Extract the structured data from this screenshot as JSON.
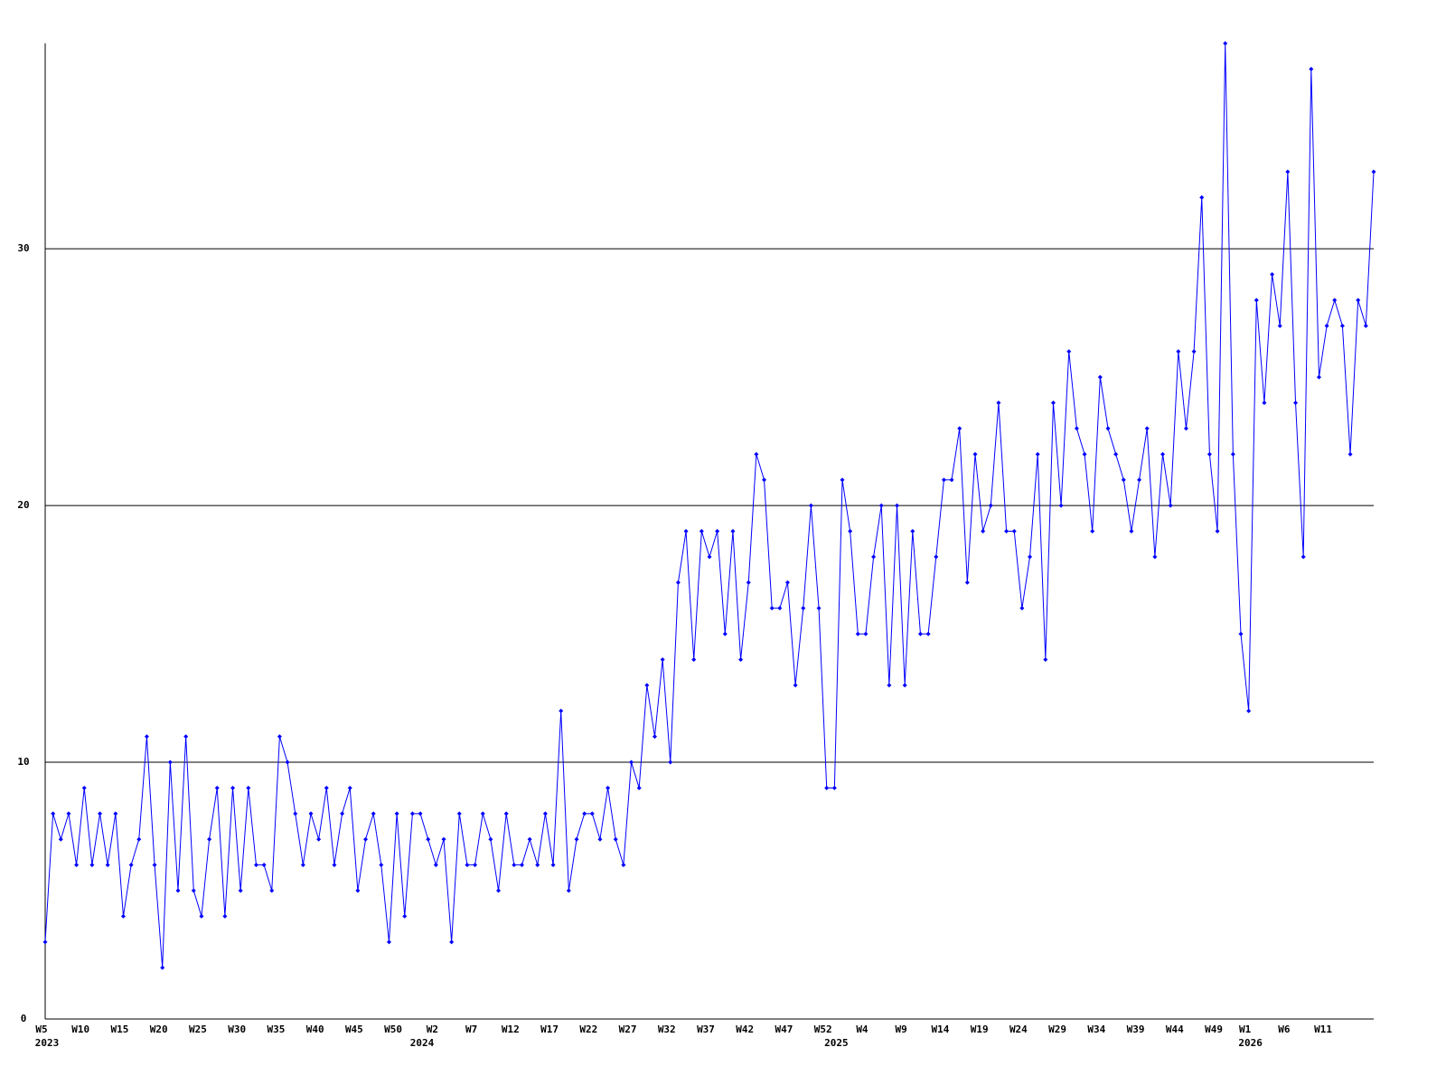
{
  "chart_data": {
    "type": "line",
    "categories": [
      "W5",
      null,
      null,
      null,
      null,
      "W10",
      null,
      null,
      null,
      null,
      "W15",
      null,
      null,
      null,
      null,
      "W20",
      null,
      null,
      null,
      null,
      "W25",
      null,
      null,
      null,
      null,
      "W30",
      null,
      null,
      null,
      null,
      "W35",
      null,
      null,
      null,
      null,
      "W40",
      null,
      null,
      null,
      null,
      "W45",
      null,
      null,
      null,
      null,
      "W50",
      null,
      null,
      null,
      null,
      "W2",
      null,
      null,
      null,
      null,
      "W7",
      null,
      null,
      null,
      null,
      "W12",
      null,
      null,
      null,
      null,
      "W17",
      null,
      null,
      null,
      null,
      "W22",
      null,
      null,
      null,
      null,
      "W27",
      null,
      null,
      null,
      null,
      "W32",
      null,
      null,
      null,
      null,
      "W37",
      null,
      null,
      null,
      null,
      "W42",
      null,
      null,
      null,
      null,
      "W47",
      null,
      null,
      null,
      null,
      "W52",
      null,
      null,
      null,
      null,
      "W4",
      null,
      null,
      null,
      null,
      "W9",
      null,
      null,
      null,
      null,
      "W14",
      null,
      null,
      null,
      null,
      "W19",
      null,
      null,
      null,
      null,
      "W24",
      null,
      null,
      null,
      null,
      "W29",
      null,
      null,
      null,
      null,
      "W34",
      null,
      null,
      null,
      null,
      "W39",
      null,
      null,
      null,
      null,
      "W44",
      null,
      null,
      null,
      null,
      "W49",
      null,
      null,
      null,
      "W1",
      null,
      null,
      null,
      null,
      "W6",
      null,
      null,
      null,
      null,
      "W11",
      null,
      null,
      null,
      null,
      null,
      null
    ],
    "years": [
      "2023",
      null,
      null,
      null,
      null,
      null,
      null,
      null,
      null,
      null,
      null,
      null,
      null,
      null,
      null,
      null,
      null,
      null,
      null,
      null,
      null,
      null,
      null,
      null,
      null,
      null,
      null,
      null,
      null,
      null,
      null,
      null,
      null,
      null,
      null,
      null,
      null,
      null,
      null,
      null,
      null,
      null,
      null,
      null,
      null,
      null,
      null,
      null,
      "2024",
      null,
      null,
      null,
      null,
      null,
      null,
      null,
      null,
      null,
      null,
      null,
      null,
      null,
      null,
      null,
      null,
      null,
      null,
      null,
      null,
      null,
      null,
      null,
      null,
      null,
      null,
      null,
      null,
      null,
      null,
      null,
      null,
      null,
      null,
      null,
      null,
      null,
      null,
      null,
      null,
      null,
      null,
      null,
      null,
      null,
      null,
      null,
      null,
      null,
      null,
      null,
      null,
      "2025",
      null,
      null,
      null,
      null,
      null,
      null,
      null,
      null,
      null,
      null,
      null,
      null,
      null,
      null,
      null,
      null,
      null,
      null,
      null,
      null,
      null,
      null,
      null,
      null,
      null,
      null,
      null,
      null,
      null,
      null,
      null,
      null,
      null,
      null,
      null,
      null,
      null,
      null,
      null,
      null,
      null,
      null,
      null,
      null,
      null,
      null,
      null,
      null,
      null,
      null,
      null,
      null,
      "2026",
      null,
      null,
      null,
      null,
      null,
      null,
      null,
      null,
      null,
      null,
      null,
      null,
      null,
      null,
      null,
      null
    ],
    "values": [
      3,
      8,
      7,
      8,
      6,
      9,
      6,
      8,
      6,
      8,
      4,
      6,
      7,
      11,
      6,
      2,
      10,
      5,
      11,
      5,
      4,
      7,
      9,
      4,
      9,
      5,
      9,
      6,
      6,
      5,
      11,
      10,
      8,
      6,
      8,
      7,
      9,
      6,
      8,
      9,
      5,
      7,
      8,
      6,
      3,
      8,
      4,
      8,
      8,
      7,
      6,
      7,
      3,
      8,
      6,
      6,
      8,
      7,
      5,
      8,
      6,
      6,
      7,
      6,
      8,
      6,
      12,
      5,
      7,
      8,
      8,
      7,
      9,
      7,
      6,
      10,
      9,
      13,
      11,
      14,
      10,
      17,
      19,
      14,
      19,
      18,
      19,
      15,
      19,
      14,
      17,
      22,
      21,
      16,
      16,
      17,
      13,
      16,
      20,
      16,
      9,
      9,
      21,
      19,
      15,
      15,
      18,
      20,
      13,
      20,
      13,
      19,
      15,
      15,
      18,
      21,
      21,
      23,
      17,
      22,
      19,
      20,
      24,
      19,
      19,
      16,
      18,
      22,
      14,
      24,
      20,
      26,
      23,
      22,
      19,
      25,
      23,
      22,
      21,
      19,
      21,
      23,
      18,
      22,
      20,
      26,
      23,
      26,
      32,
      22,
      19,
      38,
      22,
      15,
      12,
      28,
      24,
      29,
      27,
      33,
      24,
      18,
      37,
      25,
      27,
      28,
      27,
      22,
      28,
      27,
      33
    ],
    "color": "#0000ff",
    "ylim": [
      0,
      38
    ],
    "yticks": [
      0,
      10,
      20,
      30
    ],
    "grid": true
  }
}
